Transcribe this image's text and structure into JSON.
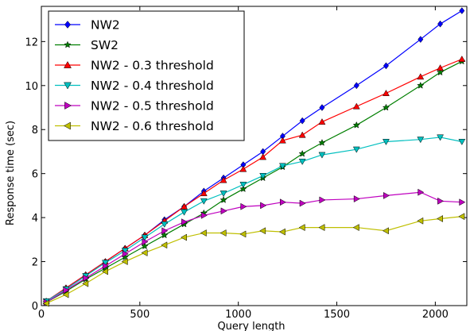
{
  "chart_data": {
    "type": "line",
    "title": "",
    "xlabel": "Query length",
    "ylabel": "Response time (sec)",
    "xlim": [
      0,
      2160
    ],
    "ylim": [
      0,
      13.6
    ],
    "xticks": [
      0,
      500,
      1000,
      1500,
      2000
    ],
    "yticks": [
      0,
      2,
      4,
      6,
      8,
      10,
      12
    ],
    "grid": false,
    "legend_position": "upper-left",
    "series": [
      {
        "name": "NW2",
        "color": "#0000ff",
        "marker": "diamond",
        "x": [
          25,
          125,
          225,
          325,
          425,
          525,
          625,
          725,
          825,
          925,
          1025,
          1125,
          1225,
          1325,
          1425,
          1600,
          1750,
          1925,
          2025,
          2135
        ],
        "y": [
          0.2,
          0.8,
          1.4,
          2.0,
          2.6,
          3.2,
          3.9,
          4.5,
          5.2,
          5.8,
          6.4,
          7.0,
          7.7,
          8.4,
          9.0,
          10.0,
          10.9,
          12.1,
          12.8,
          13.4
        ]
      },
      {
        "name": "SW2",
        "color": "#007f00",
        "marker": "star",
        "x": [
          25,
          125,
          225,
          325,
          425,
          525,
          625,
          725,
          825,
          925,
          1025,
          1125,
          1225,
          1325,
          1425,
          1600,
          1750,
          1925,
          2025,
          2135
        ],
        "y": [
          0.15,
          0.65,
          1.2,
          1.7,
          2.2,
          2.7,
          3.2,
          3.7,
          4.2,
          4.8,
          5.3,
          5.8,
          6.3,
          6.9,
          7.4,
          8.2,
          9.0,
          10.0,
          10.6,
          11.1
        ]
      },
      {
        "name": "NW2 - 0.3 threshold",
        "color": "#ff0000",
        "marker": "triangle-up",
        "x": [
          25,
          125,
          225,
          325,
          425,
          525,
          625,
          725,
          825,
          925,
          1025,
          1125,
          1225,
          1325,
          1425,
          1600,
          1750,
          1925,
          2025,
          2135
        ],
        "y": [
          0.2,
          0.8,
          1.4,
          2.0,
          2.6,
          3.2,
          3.85,
          4.5,
          5.1,
          5.7,
          6.2,
          6.75,
          7.5,
          7.75,
          8.35,
          9.05,
          9.65,
          10.4,
          10.8,
          11.2
        ]
      },
      {
        "name": "NW2 - 0.4 threshold",
        "color": "#00bfbf",
        "marker": "triangle-down",
        "x": [
          25,
          125,
          225,
          325,
          425,
          525,
          625,
          725,
          825,
          925,
          1025,
          1125,
          1225,
          1325,
          1425,
          1600,
          1750,
          1925,
          2025,
          2135
        ],
        "y": [
          0.2,
          0.75,
          1.35,
          1.95,
          2.5,
          3.1,
          3.7,
          4.25,
          4.75,
          5.1,
          5.5,
          5.9,
          6.35,
          6.55,
          6.85,
          7.1,
          7.45,
          7.55,
          7.65,
          7.45
        ]
      },
      {
        "name": "NW2 - 0.5 threshold",
        "color": "#bf00bf",
        "marker": "triangle-right",
        "x": [
          25,
          125,
          225,
          325,
          425,
          525,
          625,
          725,
          825,
          925,
          1025,
          1125,
          1225,
          1325,
          1425,
          1600,
          1750,
          1925,
          2025,
          2135
        ],
        "y": [
          0.15,
          0.7,
          1.25,
          1.8,
          2.35,
          2.9,
          3.4,
          3.8,
          4.1,
          4.3,
          4.5,
          4.55,
          4.7,
          4.65,
          4.8,
          4.85,
          5.0,
          5.15,
          4.75,
          4.7
        ]
      },
      {
        "name": "NW2 - 0.6 threshold",
        "color": "#bfbf00",
        "marker": "triangle-left",
        "x": [
          25,
          125,
          225,
          325,
          425,
          525,
          625,
          725,
          825,
          925,
          1025,
          1125,
          1225,
          1325,
          1425,
          1600,
          1750,
          1925,
          2025,
          2135
        ],
        "y": [
          0.1,
          0.5,
          1.0,
          1.55,
          2.0,
          2.4,
          2.75,
          3.1,
          3.3,
          3.3,
          3.25,
          3.4,
          3.35,
          3.55,
          3.55,
          3.55,
          3.4,
          3.85,
          3.95,
          4.05
        ]
      }
    ]
  }
}
